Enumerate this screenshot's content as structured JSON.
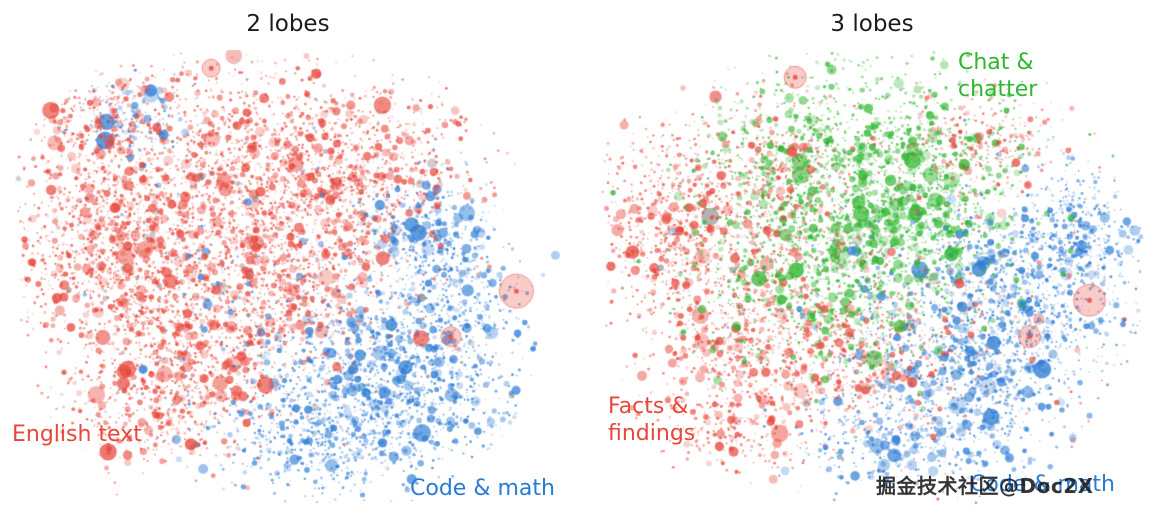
{
  "watermark": {
    "text": "掘金技术社区@Doc2X"
  },
  "chart_data": {
    "type": "scatter",
    "title": "",
    "axes": "none",
    "grid": false,
    "colors": {
      "red": "#e8473b",
      "blue": "#2b7bd4",
      "green": "#2eb62e",
      "gray": "#8a8a8a"
    },
    "panels": [
      {
        "title": "2 lobes",
        "labels": [
          {
            "text": "English text",
            "color": "red"
          },
          {
            "text": "Code & math",
            "color": "blue"
          }
        ],
        "clusters": [
          {
            "color": "red",
            "x": 0.42,
            "y": 0.28,
            "sx": 0.16,
            "sy": 0.13,
            "n": 1600
          },
          {
            "color": "red",
            "x": 0.17,
            "y": 0.42,
            "sx": 0.09,
            "sy": 0.11,
            "n": 900
          },
          {
            "color": "red",
            "x": 0.33,
            "y": 0.6,
            "sx": 0.12,
            "sy": 0.11,
            "n": 1000
          },
          {
            "color": "red",
            "x": 0.52,
            "y": 0.48,
            "sx": 0.1,
            "sy": 0.12,
            "n": 700
          },
          {
            "color": "red",
            "x": 0.25,
            "y": 0.8,
            "sx": 0.08,
            "sy": 0.07,
            "n": 350
          },
          {
            "color": "red",
            "x": 0.65,
            "y": 0.25,
            "sx": 0.1,
            "sy": 0.08,
            "n": 450
          },
          {
            "color": "red",
            "x": 0.15,
            "y": 0.15,
            "sx": 0.07,
            "sy": 0.06,
            "n": 250
          },
          {
            "color": "blue",
            "x": 0.7,
            "y": 0.72,
            "sx": 0.12,
            "sy": 0.11,
            "n": 1300
          },
          {
            "color": "blue",
            "x": 0.55,
            "y": 0.85,
            "sx": 0.1,
            "sy": 0.06,
            "n": 450
          },
          {
            "color": "blue",
            "x": 0.8,
            "y": 0.5,
            "sx": 0.06,
            "sy": 0.08,
            "n": 350
          },
          {
            "color": "blue",
            "x": 0.74,
            "y": 0.38,
            "sx": 0.05,
            "sy": 0.05,
            "n": 200
          },
          {
            "color": "blue",
            "x": 0.22,
            "y": 0.16,
            "sx": 0.05,
            "sy": 0.04,
            "n": 130
          },
          {
            "color": "blue",
            "x": 0.45,
            "y": 0.55,
            "sx": 0.18,
            "sy": 0.18,
            "n": 200
          },
          {
            "color": "gray",
            "x": 0.45,
            "y": 0.45,
            "sx": 0.24,
            "sy": 0.24,
            "n": 150
          }
        ],
        "bubbles": [
          {
            "x": 0.92,
            "y": 0.53,
            "r": 17,
            "color": "red"
          },
          {
            "x": 0.36,
            "y": 0.04,
            "r": 9,
            "color": "red"
          },
          {
            "x": 0.8,
            "y": 0.63,
            "r": 10,
            "color": "red"
          }
        ]
      },
      {
        "title": "3 lobes",
        "labels": [
          {
            "text": "Chat &\nchatter",
            "color": "green"
          },
          {
            "text": "Facts &\nfindings",
            "color": "red"
          },
          {
            "text": "Code & math",
            "color": "blue"
          }
        ],
        "clusters": [
          {
            "color": "green",
            "x": 0.48,
            "y": 0.25,
            "sx": 0.15,
            "sy": 0.11,
            "n": 1400
          },
          {
            "color": "green",
            "x": 0.42,
            "y": 0.5,
            "sx": 0.13,
            "sy": 0.12,
            "n": 1100
          },
          {
            "color": "green",
            "x": 0.6,
            "y": 0.38,
            "sx": 0.08,
            "sy": 0.08,
            "n": 400
          },
          {
            "color": "red",
            "x": 0.14,
            "y": 0.38,
            "sx": 0.08,
            "sy": 0.11,
            "n": 700
          },
          {
            "color": "red",
            "x": 0.28,
            "y": 0.62,
            "sx": 0.09,
            "sy": 0.09,
            "n": 500
          },
          {
            "color": "red",
            "x": 0.33,
            "y": 0.3,
            "sx": 0.07,
            "sy": 0.1,
            "n": 400
          },
          {
            "color": "red",
            "x": 0.48,
            "y": 0.68,
            "sx": 0.1,
            "sy": 0.08,
            "n": 450
          },
          {
            "color": "red",
            "x": 0.25,
            "y": 0.82,
            "sx": 0.07,
            "sy": 0.05,
            "n": 250
          },
          {
            "color": "red",
            "x": 0.7,
            "y": 0.2,
            "sx": 0.08,
            "sy": 0.06,
            "n": 250
          },
          {
            "color": "red",
            "x": 0.55,
            "y": 0.55,
            "sx": 0.2,
            "sy": 0.18,
            "n": 300
          },
          {
            "color": "blue",
            "x": 0.78,
            "y": 0.52,
            "sx": 0.1,
            "sy": 0.1,
            "n": 900
          },
          {
            "color": "blue",
            "x": 0.68,
            "y": 0.72,
            "sx": 0.11,
            "sy": 0.09,
            "n": 700
          },
          {
            "color": "blue",
            "x": 0.55,
            "y": 0.87,
            "sx": 0.1,
            "sy": 0.05,
            "n": 300
          },
          {
            "color": "blue",
            "x": 0.88,
            "y": 0.38,
            "sx": 0.05,
            "sy": 0.06,
            "n": 250
          },
          {
            "color": "blue",
            "x": 0.6,
            "y": 0.6,
            "sx": 0.15,
            "sy": 0.15,
            "n": 250
          },
          {
            "color": "gray",
            "x": 0.5,
            "y": 0.45,
            "sx": 0.25,
            "sy": 0.25,
            "n": 120
          }
        ],
        "bubbles": [
          {
            "x": 0.9,
            "y": 0.55,
            "r": 16,
            "color": "red"
          },
          {
            "x": 0.36,
            "y": 0.06,
            "r": 11,
            "color": "red"
          },
          {
            "x": 0.79,
            "y": 0.63,
            "r": 11,
            "color": "red"
          }
        ]
      }
    ]
  }
}
